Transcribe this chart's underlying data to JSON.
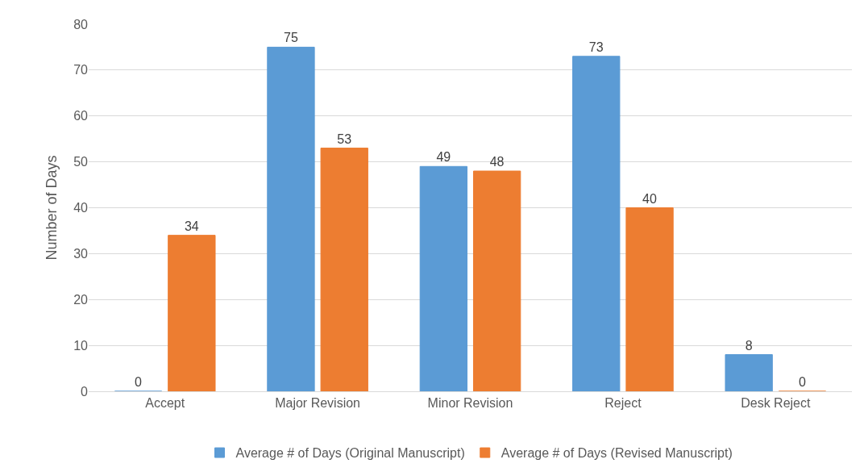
{
  "chart_data": {
    "type": "bar",
    "ylabel": "Number of Days",
    "categories": [
      "Accept",
      "Major Revision",
      "Minor Revision",
      "Reject",
      "Desk Reject"
    ],
    "series": [
      {
        "name": "Average # of Days (Original Manuscript)",
        "color": "#5b9bd5",
        "values": [
          0,
          75,
          49,
          73,
          8
        ]
      },
      {
        "name": "Average # of Days (Revised Manuscript)",
        "color": "#ed7d31",
        "values": [
          34,
          53,
          48,
          40,
          0
        ]
      }
    ],
    "ylim": [
      0,
      80
    ],
    "yticks": [
      0,
      10,
      20,
      30,
      40,
      50,
      60,
      70,
      80
    ],
    "grid": "y",
    "legend": "bottom",
    "data_labels": true
  }
}
